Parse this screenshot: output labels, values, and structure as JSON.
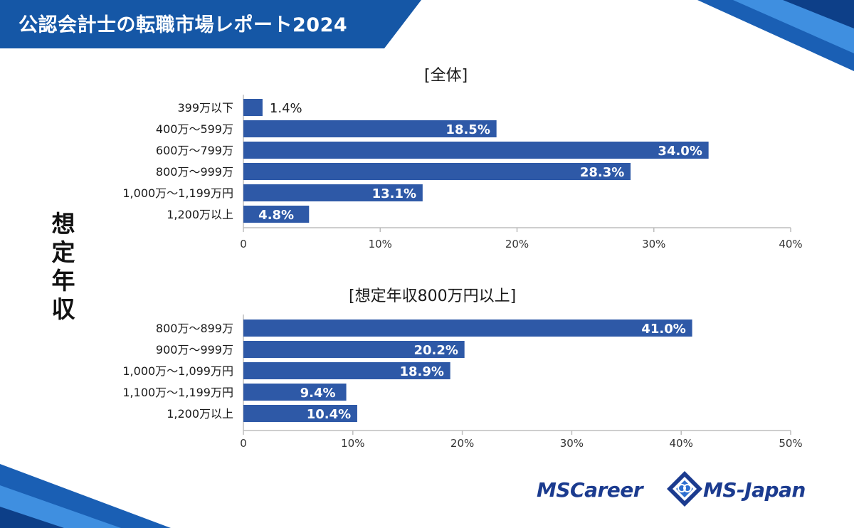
{
  "header": {
    "title": "公認会計士の転職市場レポート2024"
  },
  "y_group_label": [
    "想",
    "定",
    "年",
    "収"
  ],
  "colors": {
    "bar": "#2e59a7",
    "banner": "#1557a6",
    "axis": "#bdbdbd",
    "text": "#1a1a1a",
    "logo": "#1b3b8f"
  },
  "chart_data": [
    {
      "type": "bar",
      "orientation": "horizontal",
      "title": "[全体]",
      "categories": [
        "399万以下",
        "400万～599万",
        "600万～799万",
        "800万～999万",
        "1,000万～1,199万円",
        "1,200万以上"
      ],
      "values": [
        1.4,
        18.5,
        34.0,
        28.3,
        13.1,
        4.8
      ],
      "data_labels": [
        "1.4%",
        "18.5%",
        "34.0%",
        "28.3%",
        "13.1%",
        "4.8%"
      ],
      "xlim": [
        0,
        40
      ],
      "ticks": [
        0,
        10,
        20,
        30,
        40
      ],
      "tick_labels": [
        "0",
        "10%",
        "20%",
        "30%",
        "40%"
      ]
    },
    {
      "type": "bar",
      "orientation": "horizontal",
      "title": "[想定年収800万円以上]",
      "categories": [
        "800万～899万",
        "900万～999万",
        "1,000万～1,099万円",
        "1,100万～1,199万円",
        "1,200万以上"
      ],
      "values": [
        41.0,
        20.2,
        18.9,
        9.4,
        10.4
      ],
      "data_labels": [
        "41.0%",
        "20.2%",
        "18.9%",
        "9.4%",
        "10.4%"
      ],
      "xlim": [
        0,
        50
      ],
      "ticks": [
        0,
        10,
        20,
        30,
        40,
        50
      ],
      "tick_labels": [
        "0",
        "10%",
        "20%",
        "30%",
        "40%",
        "50%"
      ]
    }
  ],
  "logos": {
    "mscareer": "MSCareer",
    "msjapan": "MS-Japan"
  }
}
